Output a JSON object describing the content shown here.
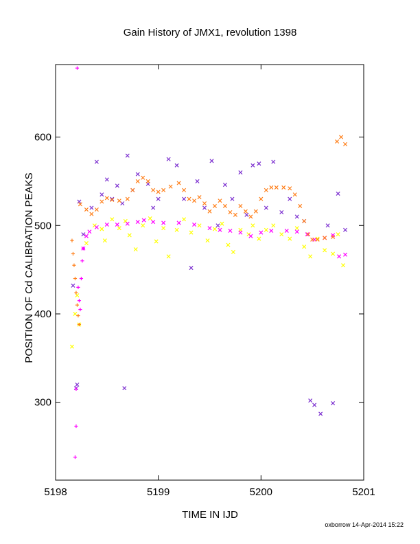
{
  "chart_data": {
    "type": "scatter",
    "title": "Gain History of JMX1, revolution 1398",
    "xlabel": "TIME IN IJD",
    "ylabel": "POSITION OF Cd CALIBRATION PEAKS",
    "xlim": [
      5198,
      5201
    ],
    "ylim": [
      212,
      682
    ],
    "x_ticks": [
      "5198",
      "5199",
      "5200",
      "5201"
    ],
    "y_ticks": [
      "300",
      "400",
      "500",
      "600"
    ],
    "x_tick_values": [
      5198,
      5199,
      5200,
      5201
    ],
    "y_tick_values": [
      300,
      400,
      500,
      600
    ],
    "grid": false,
    "legend": "none",
    "series": [
      {
        "color": "#ffff00",
        "marker": "x",
        "points": [
          [
            5198.16,
            363
          ],
          [
            5198.19,
            400
          ],
          [
            5198.21,
            421
          ],
          [
            5198.23,
            388
          ],
          [
            5198.3,
            480
          ],
          [
            5198.38,
            500
          ],
          [
            5198.45,
            496
          ],
          [
            5198.48,
            483
          ],
          [
            5198.55,
            507
          ],
          [
            5198.62,
            497
          ],
          [
            5198.68,
            505
          ],
          [
            5198.72,
            489
          ],
          [
            5198.78,
            473
          ],
          [
            5198.85,
            500
          ],
          [
            5198.92,
            508
          ],
          [
            5198.98,
            482
          ],
          [
            5199.05,
            497
          ],
          [
            5199.1,
            465
          ],
          [
            5199.18,
            495
          ],
          [
            5199.25,
            507
          ],
          [
            5199.32,
            492
          ],
          [
            5199.4,
            500
          ],
          [
            5199.48,
            483
          ],
          [
            5199.55,
            496
          ],
          [
            5199.62,
            502
          ],
          [
            5199.68,
            478
          ],
          [
            5199.73,
            470
          ],
          [
            5199.8,
            495
          ],
          [
            5199.88,
            490
          ],
          [
            5199.92,
            500
          ],
          [
            5199.98,
            485
          ],
          [
            5200.05,
            495
          ],
          [
            5200.12,
            500
          ],
          [
            5200.2,
            490
          ],
          [
            5200.28,
            485
          ],
          [
            5200.35,
            497
          ],
          [
            5200.42,
            476
          ],
          [
            5200.48,
            465
          ],
          [
            5200.55,
            485
          ],
          [
            5200.62,
            472
          ],
          [
            5200.7,
            468
          ],
          [
            5200.75,
            490
          ],
          [
            5200.8,
            455
          ]
        ]
      },
      {
        "color": "#7b2fcf",
        "marker": "x",
        "points": [
          [
            5198.17,
            432
          ],
          [
            5198.2,
            316
          ],
          [
            5198.21,
            320
          ],
          [
            5198.23,
            527
          ],
          [
            5198.27,
            490
          ],
          [
            5198.35,
            520
          ],
          [
            5198.4,
            572
          ],
          [
            5198.45,
            535
          ],
          [
            5198.5,
            552
          ],
          [
            5198.55,
            530
          ],
          [
            5198.6,
            545
          ],
          [
            5198.65,
            525
          ],
          [
            5198.67,
            316
          ],
          [
            5198.7,
            579
          ],
          [
            5198.75,
            540
          ],
          [
            5198.8,
            558
          ],
          [
            5198.9,
            547
          ],
          [
            5198.95,
            520
          ],
          [
            5199.0,
            530
          ],
          [
            5199.1,
            575
          ],
          [
            5199.18,
            568
          ],
          [
            5199.25,
            530
          ],
          [
            5199.32,
            452
          ],
          [
            5199.38,
            550
          ],
          [
            5199.45,
            520
          ],
          [
            5199.52,
            573
          ],
          [
            5199.58,
            500
          ],
          [
            5199.65,
            546
          ],
          [
            5199.72,
            530
          ],
          [
            5199.8,
            560
          ],
          [
            5199.86,
            512
          ],
          [
            5199.92,
            568
          ],
          [
            5199.98,
            570
          ],
          [
            5200.05,
            520
          ],
          [
            5200.12,
            572
          ],
          [
            5200.2,
            515
          ],
          [
            5200.28,
            530
          ],
          [
            5200.35,
            510
          ],
          [
            5200.42,
            505
          ],
          [
            5200.48,
            302
          ],
          [
            5200.52,
            297
          ],
          [
            5200.58,
            287
          ],
          [
            5200.65,
            500
          ],
          [
            5200.7,
            299
          ],
          [
            5200.75,
            536
          ],
          [
            5200.82,
            495
          ]
        ]
      },
      {
        "color": "#ff00ff",
        "marker": "+",
        "points": [
          [
            5198.21,
            678
          ],
          [
            5198.2,
            273
          ],
          [
            5198.19,
            238
          ],
          [
            5198.2,
            315
          ],
          [
            5198.22,
            430
          ],
          [
            5198.23,
            415
          ],
          [
            5198.24,
            405
          ],
          [
            5198.25,
            440
          ],
          [
            5198.26,
            460
          ],
          [
            5198.27,
            474
          ]
        ]
      },
      {
        "color": "#ff00ff",
        "marker": "x",
        "points": [
          [
            5198.27,
            474
          ],
          [
            5198.3,
            488
          ],
          [
            5198.33,
            493
          ],
          [
            5198.4,
            498
          ],
          [
            5198.5,
            501
          ],
          [
            5198.6,
            501
          ],
          [
            5198.7,
            502
          ],
          [
            5198.8,
            504
          ],
          [
            5198.86,
            506
          ],
          [
            5198.95,
            504
          ],
          [
            5199.05,
            503
          ],
          [
            5199.2,
            503
          ],
          [
            5199.35,
            501
          ],
          [
            5199.5,
            497
          ],
          [
            5199.6,
            495
          ],
          [
            5199.7,
            494
          ],
          [
            5199.8,
            492
          ],
          [
            5199.9,
            488
          ],
          [
            5200.0,
            492
          ],
          [
            5200.1,
            494
          ],
          [
            5200.25,
            494
          ],
          [
            5200.35,
            493
          ],
          [
            5200.45,
            490
          ],
          [
            5200.52,
            484
          ],
          [
            5200.62,
            486
          ],
          [
            5200.7,
            489
          ],
          [
            5200.76,
            465
          ],
          [
            5200.82,
            467
          ]
        ]
      },
      {
        "color": "#ff7f1a",
        "marker": "+",
        "points": [
          [
            5198.16,
            483
          ],
          [
            5198.17,
            468
          ],
          [
            5198.18,
            455
          ],
          [
            5198.19,
            440
          ],
          [
            5198.2,
            424
          ],
          [
            5198.21,
            410
          ],
          [
            5198.22,
            398
          ],
          [
            5198.23,
            388
          ]
        ]
      },
      {
        "color": "#ff7f1a",
        "marker": "x",
        "points": [
          [
            5198.24,
            524
          ],
          [
            5198.3,
            518
          ],
          [
            5198.35,
            513
          ],
          [
            5198.4,
            518
          ],
          [
            5198.45,
            527
          ],
          [
            5198.5,
            531
          ],
          [
            5198.55,
            529
          ],
          [
            5198.62,
            528
          ],
          [
            5198.7,
            530
          ],
          [
            5198.75,
            540
          ],
          [
            5198.8,
            550
          ],
          [
            5198.85,
            554
          ],
          [
            5198.9,
            550
          ],
          [
            5198.95,
            540
          ],
          [
            5199.0,
            538
          ],
          [
            5199.05,
            540
          ],
          [
            5199.12,
            544
          ],
          [
            5199.2,
            548
          ],
          [
            5199.25,
            540
          ],
          [
            5199.3,
            530
          ],
          [
            5199.35,
            528
          ],
          [
            5199.4,
            532
          ],
          [
            5199.45,
            525
          ],
          [
            5199.5,
            516
          ],
          [
            5199.55,
            522
          ],
          [
            5199.6,
            528
          ],
          [
            5199.65,
            522
          ],
          [
            5199.7,
            515
          ],
          [
            5199.75,
            512
          ],
          [
            5199.8,
            522
          ],
          [
            5199.85,
            516
          ],
          [
            5199.9,
            510
          ],
          [
            5199.95,
            516
          ],
          [
            5200.0,
            530
          ],
          [
            5200.05,
            540
          ],
          [
            5200.1,
            543
          ],
          [
            5200.15,
            543
          ],
          [
            5200.22,
            543
          ],
          [
            5200.28,
            542
          ],
          [
            5200.33,
            535
          ],
          [
            5200.38,
            522
          ],
          [
            5200.42,
            505
          ],
          [
            5200.46,
            490
          ],
          [
            5200.5,
            484
          ],
          [
            5200.55,
            484
          ],
          [
            5200.62,
            486
          ],
          [
            5200.7,
            487
          ],
          [
            5200.74,
            595
          ],
          [
            5200.78,
            600
          ],
          [
            5200.82,
            592
          ]
        ]
      }
    ]
  },
  "footer": {
    "stamp": "oxborrow 14-Apr-2014 15:22"
  }
}
